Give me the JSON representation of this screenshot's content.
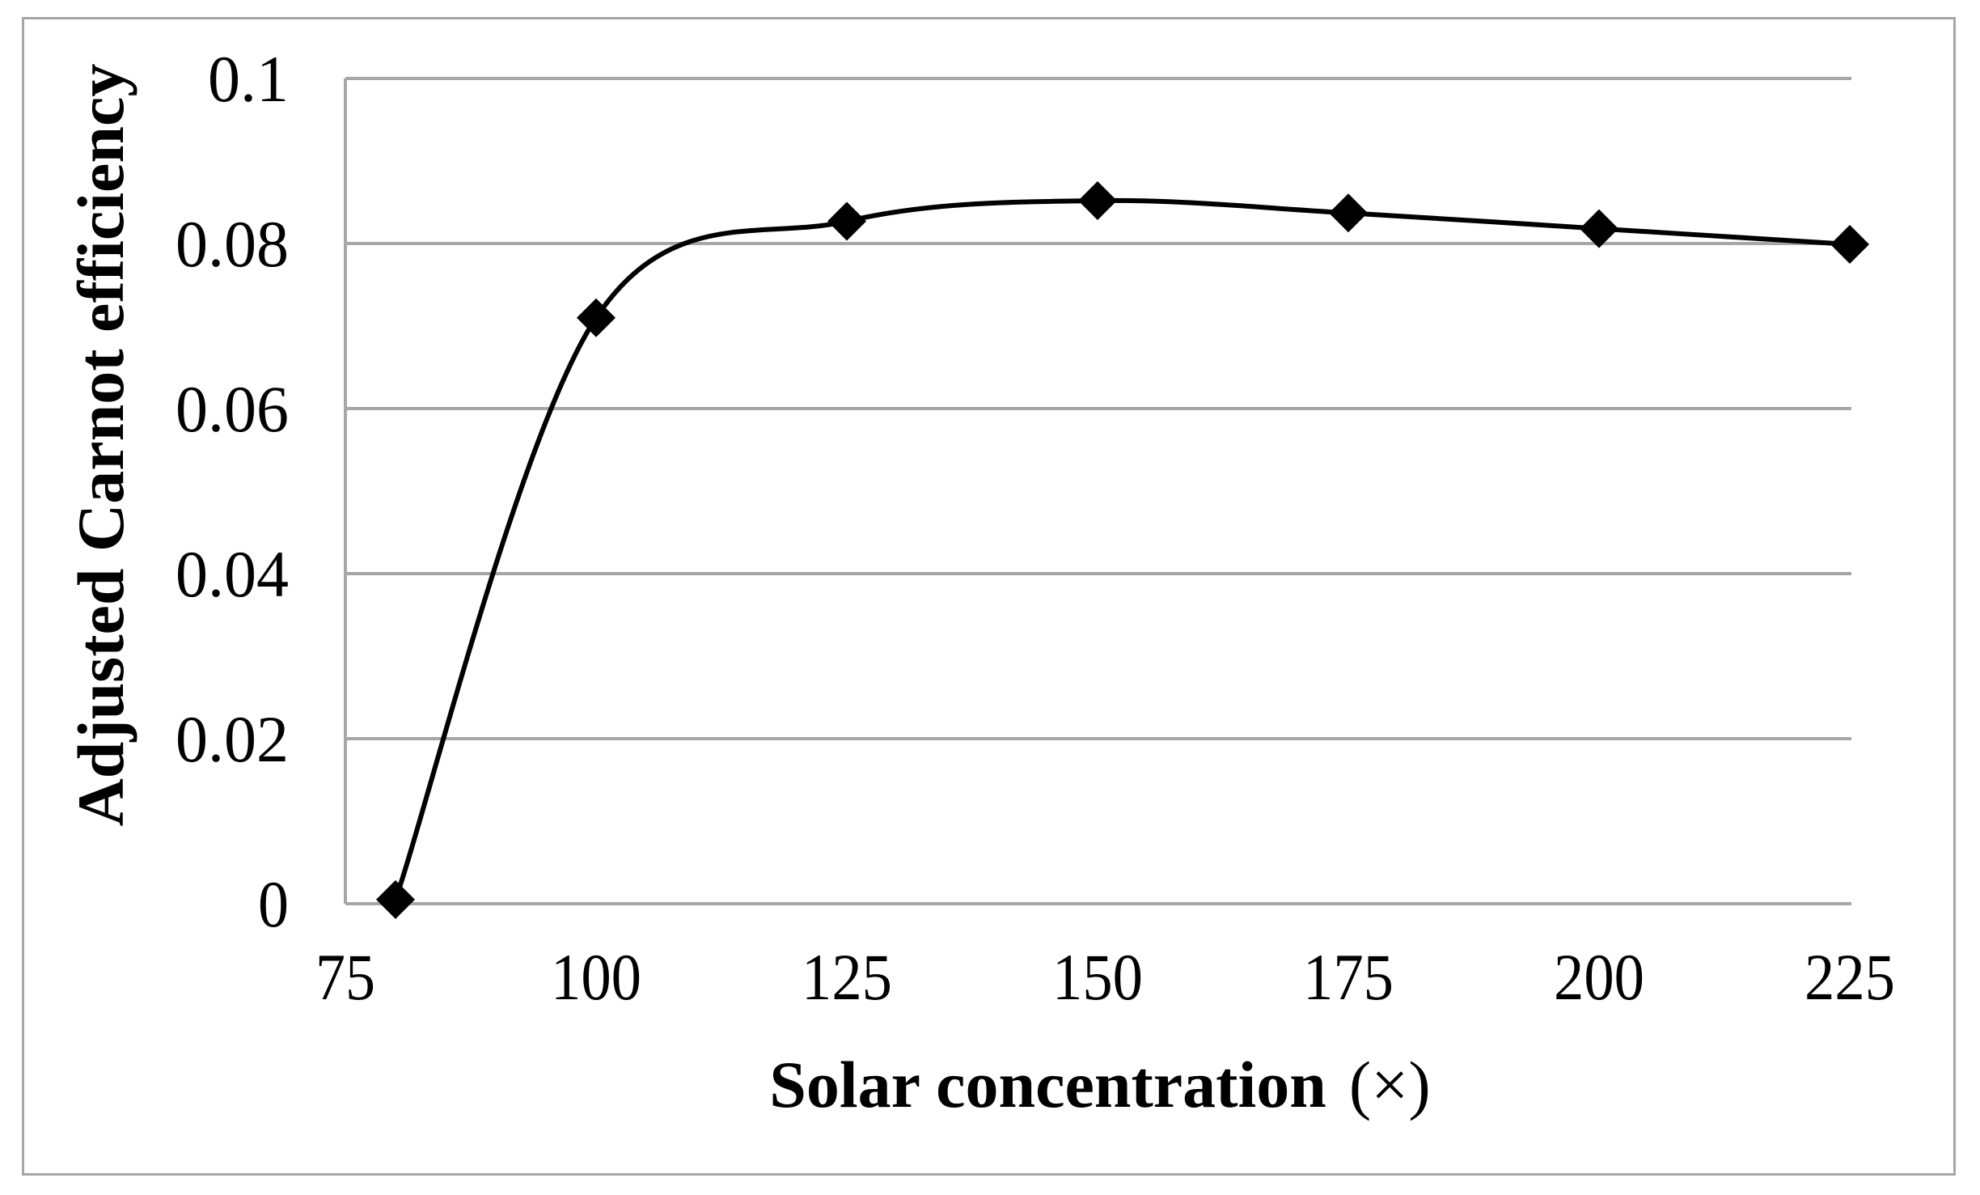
{
  "chart_data": {
    "type": "line",
    "title": "",
    "xlabel": "Solar concentration",
    "xlabel_unit": "(×)",
    "ylabel": "Adjusted Carnot efficiency",
    "x": [
      80,
      100,
      125,
      150,
      175,
      200,
      225
    ],
    "series": [
      {
        "name": "Adjusted Carnot efficiency",
        "values": [
          0.0005,
          0.071,
          0.0827,
          0.0852,
          0.0837,
          0.0818,
          0.0799
        ],
        "marker": "diamond",
        "line": "smoothed",
        "color": "#000000"
      }
    ],
    "xlim": [
      75,
      225
    ],
    "ylim": [
      0,
      0.1
    ],
    "xticks": [
      "75",
      "100",
      "125",
      "150",
      "175",
      "200",
      "225"
    ],
    "yticks": [
      "0",
      "0.02",
      "0.04",
      "0.06",
      "0.08",
      "0.1"
    ],
    "grid": "horizontal",
    "legend": "none"
  },
  "colors": {
    "gridline": "#a6a6a6",
    "frame": "#a6a6a6",
    "series": "#000000"
  }
}
